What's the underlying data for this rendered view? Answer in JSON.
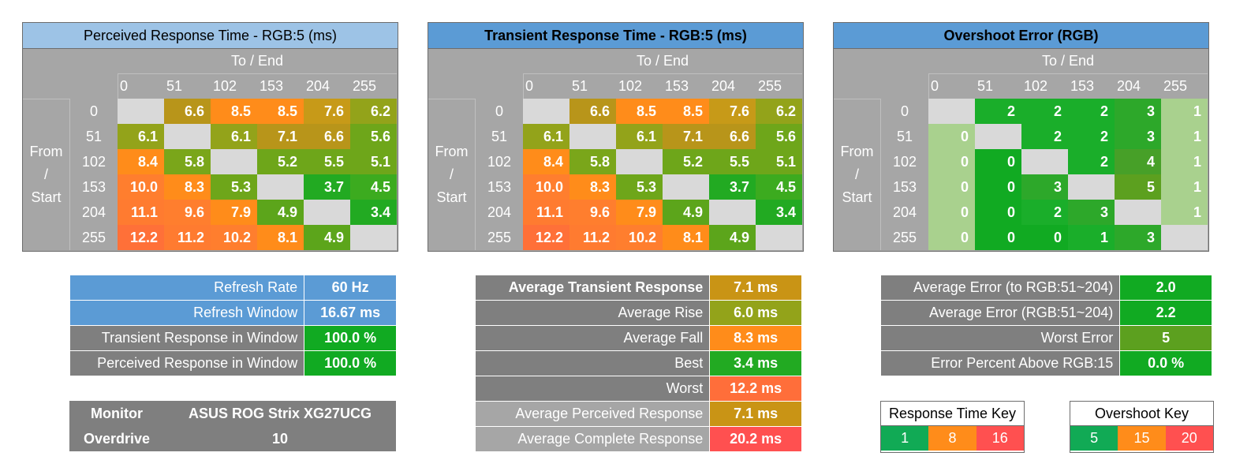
{
  "chart_data": [
    {
      "type": "heatmap",
      "title": "Perceived Response Time - RGB:5 (ms)",
      "x_label": "To / End",
      "y_label": "From / Start",
      "levels": [
        "0",
        "51",
        "102",
        "153",
        "204",
        "255"
      ],
      "values": [
        [
          null,
          "6.6",
          "8.5",
          "8.5",
          "7.6",
          "6.2"
        ],
        [
          "6.1",
          null,
          "6.1",
          "7.1",
          "6.6",
          "5.6"
        ],
        [
          "8.4",
          "5.8",
          null,
          "5.2",
          "5.5",
          "5.1"
        ],
        [
          "10.0",
          "8.3",
          "5.3",
          null,
          "3.7",
          "4.5"
        ],
        [
          "11.1",
          "9.6",
          "7.9",
          "4.9",
          null,
          "3.4"
        ],
        [
          "12.2",
          "11.2",
          "10.2",
          "8.1",
          "4.9",
          null
        ]
      ],
      "colors": [
        [
          null,
          "#b8951a",
          "#ff8c1a",
          "#ff8c1a",
          "#c79a18",
          "#93a31a"
        ],
        [
          "#93a31a",
          null,
          "#93a31a",
          "#b8951a",
          "#b8951a",
          "#6ea61a"
        ],
        [
          "#ff8c1a",
          "#7aa61a",
          null,
          "#6ea61a",
          "#6ea61a",
          "#6ea61a"
        ],
        [
          "#ff7e2e",
          "#ff8c1a",
          "#6ea61a",
          null,
          "#22aa22",
          "#3cab1f"
        ],
        [
          "#ff7b30",
          "#ff7e2e",
          "#ff8c1a",
          "#5ca51b",
          null,
          "#22aa22"
        ],
        [
          "#ff7038",
          "#ff7b30",
          "#ff7e2e",
          "#ff8c1a",
          "#5ca51b",
          null
        ]
      ]
    },
    {
      "type": "heatmap",
      "title": "Transient Response Time - RGB:5 (ms)",
      "x_label": "To / End",
      "y_label": "From / Start",
      "levels": [
        "0",
        "51",
        "102",
        "153",
        "204",
        "255"
      ],
      "values": [
        [
          null,
          "6.6",
          "8.5",
          "8.5",
          "7.6",
          "6.2"
        ],
        [
          "6.1",
          null,
          "6.1",
          "7.1",
          "6.6",
          "5.6"
        ],
        [
          "8.4",
          "5.8",
          null,
          "5.2",
          "5.5",
          "5.1"
        ],
        [
          "10.0",
          "8.3",
          "5.3",
          null,
          "3.7",
          "4.5"
        ],
        [
          "11.1",
          "9.6",
          "7.9",
          "4.9",
          null,
          "3.4"
        ],
        [
          "12.2",
          "11.2",
          "10.2",
          "8.1",
          "4.9",
          null
        ]
      ],
      "colors": [
        [
          null,
          "#b8951a",
          "#ff8c1a",
          "#ff8c1a",
          "#c79a18",
          "#93a31a"
        ],
        [
          "#93a31a",
          null,
          "#93a31a",
          "#b8951a",
          "#b8951a",
          "#6ea61a"
        ],
        [
          "#ff8c1a",
          "#7aa61a",
          null,
          "#6ea61a",
          "#6ea61a",
          "#6ea61a"
        ],
        [
          "#ff7e2e",
          "#ff8c1a",
          "#6ea61a",
          null,
          "#22aa22",
          "#3cab1f"
        ],
        [
          "#ff7b30",
          "#ff7e2e",
          "#ff8c1a",
          "#5ca51b",
          null,
          "#22aa22"
        ],
        [
          "#ff7038",
          "#ff7b30",
          "#ff7e2e",
          "#ff8c1a",
          "#5ca51b",
          null
        ]
      ]
    },
    {
      "type": "heatmap",
      "title": "Overshoot Error (RGB)",
      "x_label": "To / End",
      "y_label": "From / Start",
      "levels": [
        "0",
        "51",
        "102",
        "153",
        "204",
        "255"
      ],
      "values": [
        [
          null,
          "2",
          "2",
          "2",
          "3",
          "1"
        ],
        [
          "0",
          null,
          "2",
          "2",
          "3",
          "1"
        ],
        [
          "0",
          "0",
          null,
          "2",
          "4",
          "1"
        ],
        [
          "0",
          "0",
          "3",
          null,
          "5",
          "1"
        ],
        [
          "0",
          "0",
          "2",
          "3",
          null,
          "1"
        ],
        [
          "0",
          "0",
          "0",
          "1",
          "3",
          null
        ]
      ],
      "colors": [
        [
          null,
          "#1aae2a",
          "#1aae2a",
          "#1aae2a",
          "#2da82a",
          "#a9d18e"
        ],
        [
          "#a9d18e",
          null,
          "#1aae2a",
          "#1aae2a",
          "#2da82a",
          "#a9d18e"
        ],
        [
          "#a9d18e",
          "#11aa22",
          null,
          "#1aae2a",
          "#47a028",
          "#a9d18e"
        ],
        [
          "#a9d18e",
          "#11aa22",
          "#2da82a",
          null,
          "#5ca01f",
          "#a9d18e"
        ],
        [
          "#a9d18e",
          "#11aa22",
          "#1aae2a",
          "#2da82a",
          null,
          "#a9d18e"
        ],
        [
          "#a9d18e",
          "#11aa22",
          "#11aa22",
          "#1aae2a",
          "#2da82a",
          null
        ]
      ]
    }
  ],
  "refresh": {
    "rows": [
      {
        "label": "Refresh Rate",
        "value": "60 Hz",
        "lbg": "#5b9bd5",
        "vbg": "#5b9bd5"
      },
      {
        "label": "Refresh Window",
        "value": "16.67 ms",
        "lbg": "#5b9bd5",
        "vbg": "#5b9bd5"
      },
      {
        "label": "Transient Response in Window",
        "value": "100.0 %",
        "lbg": "#7f7f7f",
        "vbg": "#11aa22"
      },
      {
        "label": "Perceived Response in Window",
        "value": "100.0 %",
        "lbg": "#7f7f7f",
        "vbg": "#11aa22"
      }
    ]
  },
  "monitor": {
    "monitor_label": "Monitor",
    "monitor_value": "ASUS ROG Strix XG27UCG",
    "overdrive_label": "Overdrive",
    "overdrive_value": "10"
  },
  "averages": {
    "rows": [
      {
        "label": "Average Transient Response",
        "value": "7.1 ms",
        "lbg": "#7f7f7f",
        "vbg": "#c99415",
        "bold": true
      },
      {
        "label": "Average Rise",
        "value": "6.0 ms",
        "lbg": "#7f7f7f",
        "vbg": "#93a31a"
      },
      {
        "label": "Average Fall",
        "value": "8.3 ms",
        "lbg": "#7f7f7f",
        "vbg": "#ff8c1a"
      },
      {
        "label": "Best",
        "value": "3.4 ms",
        "lbg": "#7f7f7f",
        "vbg": "#22aa22"
      },
      {
        "label": "Worst",
        "value": "12.2 ms",
        "lbg": "#7f7f7f",
        "vbg": "#ff6e3a"
      },
      {
        "label": "Average Perceived Response",
        "value": "7.1 ms",
        "lbg": "#a6a6a6",
        "vbg": "#c99415"
      },
      {
        "label": "Average Complete Response",
        "value": "20.2 ms",
        "lbg": "#a6a6a6",
        "vbg": "#ff5050"
      }
    ]
  },
  "errors": {
    "rows": [
      {
        "label": "Average Error (to RGB:51~204)",
        "value": "2.0",
        "vbg": "#11aa22"
      },
      {
        "label": "Average Error (RGB:51~204)",
        "value": "2.2",
        "vbg": "#11aa22"
      },
      {
        "label": "Worst Error",
        "value": "5",
        "vbg": "#5ca01f"
      },
      {
        "label": "Error Percent Above RGB:15",
        "value": "0.0 %",
        "vbg": "#11aa22"
      }
    ]
  },
  "keys": {
    "response": {
      "title": "Response Time Key",
      "items": [
        {
          "label": "1",
          "color": "#11aa55"
        },
        {
          "label": "8",
          "color": "#ff8c1a"
        },
        {
          "label": "16",
          "color": "#ff5050"
        }
      ]
    },
    "overshoot": {
      "title": "Overshoot Key",
      "items": [
        {
          "label": "5",
          "color": "#11aa55"
        },
        {
          "label": "15",
          "color": "#ff8c1a"
        },
        {
          "label": "20",
          "color": "#ff5050"
        }
      ]
    }
  }
}
